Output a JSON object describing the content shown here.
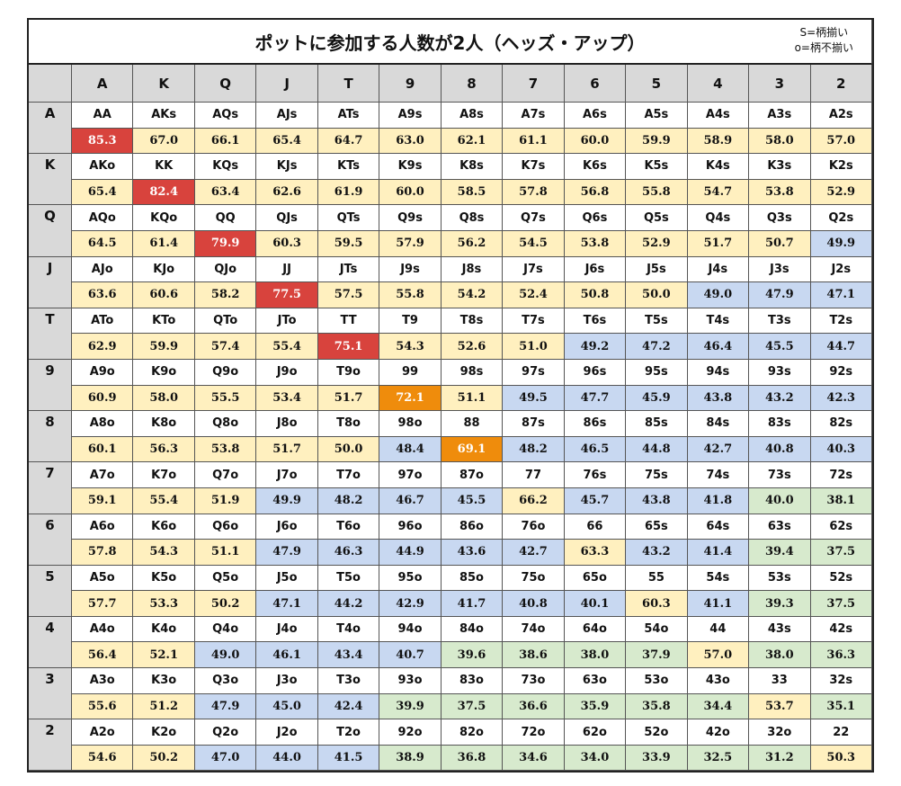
{
  "title": "ポットに参加する人数が2人（ヘッズ・アップ）",
  "note": [
    "S=柄揃い",
    "o=柄不揃い"
  ],
  "columns": [
    "A",
    "K",
    "Q",
    "J",
    "T",
    "9",
    "8",
    "7",
    "6",
    "5",
    "4",
    "3",
    "2"
  ],
  "palette": {
    "r": "#d8433d",
    "o": "#ef8c0c",
    "y": "#fff0bf",
    "b": "#c8d8f1",
    "g": "#d7eacd"
  },
  "rows": [
    {
      "label": "A",
      "hands": [
        "AA",
        "AKs",
        "AQs",
        "AJs",
        "ATs",
        "A9s",
        "A8s",
        "A7s",
        "A6s",
        "A5s",
        "A4s",
        "A3s",
        "A2s"
      ],
      "values": [
        "85.3",
        "67.0",
        "66.1",
        "65.4",
        "64.7",
        "63.0",
        "62.1",
        "61.1",
        "60.0",
        "59.9",
        "58.9",
        "58.0",
        "57.0"
      ],
      "colors": "ryyyyyyyyyyyy"
    },
    {
      "label": "K",
      "hands": [
        "AKo",
        "KK",
        "KQs",
        "KJs",
        "KTs",
        "K9s",
        "K8s",
        "K7s",
        "K6s",
        "K5s",
        "K4s",
        "K3s",
        "K2s"
      ],
      "values": [
        "65.4",
        "82.4",
        "63.4",
        "62.6",
        "61.9",
        "60.0",
        "58.5",
        "57.8",
        "56.8",
        "55.8",
        "54.7",
        "53.8",
        "52.9"
      ],
      "colors": "yryyyyyyyyyyy"
    },
    {
      "label": "Q",
      "hands": [
        "AQo",
        "KQo",
        "QQ",
        "QJs",
        "QTs",
        "Q9s",
        "Q8s",
        "Q7s",
        "Q6s",
        "Q5s",
        "Q4s",
        "Q3s",
        "Q2s"
      ],
      "values": [
        "64.5",
        "61.4",
        "79.9",
        "60.3",
        "59.5",
        "57.9",
        "56.2",
        "54.5",
        "53.8",
        "52.9",
        "51.7",
        "50.7",
        "49.9"
      ],
      "colors": "yyryyyyyyyyyb"
    },
    {
      "label": "J",
      "hands": [
        "AJo",
        "KJo",
        "QJo",
        "JJ",
        "JTs",
        "J9s",
        "J8s",
        "J7s",
        "J6s",
        "J5s",
        "J4s",
        "J3s",
        "J2s"
      ],
      "values": [
        "63.6",
        "60.6",
        "58.2",
        "77.5",
        "57.5",
        "55.8",
        "54.2",
        "52.4",
        "50.8",
        "50.0",
        "49.0",
        "47.9",
        "47.1"
      ],
      "colors": "yyyryyyyyybbb"
    },
    {
      "label": "T",
      "hands": [
        "ATo",
        "KTo",
        "QTo",
        "JTo",
        "TT",
        "T9",
        "T8s",
        "T7s",
        "T6s",
        "T5s",
        "T4s",
        "T3s",
        "T2s"
      ],
      "values": [
        "62.9",
        "59.9",
        "57.4",
        "55.4",
        "75.1",
        "54.3",
        "52.6",
        "51.0",
        "49.2",
        "47.2",
        "46.4",
        "45.5",
        "44.7"
      ],
      "colors": "yyyyryyybbbbb"
    },
    {
      "label": "9",
      "hands": [
        "A9o",
        "K9o",
        "Q9o",
        "J9o",
        "T9o",
        "99",
        "98s",
        "97s",
        "96s",
        "95s",
        "94s",
        "93s",
        "92s"
      ],
      "values": [
        "60.9",
        "58.0",
        "55.5",
        "53.4",
        "51.7",
        "72.1",
        "51.1",
        "49.5",
        "47.7",
        "45.9",
        "43.8",
        "43.2",
        "42.3"
      ],
      "colors": "yyyyyoybbbbbb"
    },
    {
      "label": "8",
      "hands": [
        "A8o",
        "K8o",
        "Q8o",
        "J8o",
        "T8o",
        "98o",
        "88",
        "87s",
        "86s",
        "85s",
        "84s",
        "83s",
        "82s"
      ],
      "values": [
        "60.1",
        "56.3",
        "53.8",
        "51.7",
        "50.0",
        "48.4",
        "69.1",
        "48.2",
        "46.5",
        "44.8",
        "42.7",
        "40.8",
        "40.3"
      ],
      "colors": "yyyyybobbbbbb"
    },
    {
      "label": "7",
      "hands": [
        "A7o",
        "K7o",
        "Q7o",
        "J7o",
        "T7o",
        "97o",
        "87o",
        "77",
        "76s",
        "75s",
        "74s",
        "73s",
        "72s"
      ],
      "values": [
        "59.1",
        "55.4",
        "51.9",
        "49.9",
        "48.2",
        "46.7",
        "45.5",
        "66.2",
        "45.7",
        "43.8",
        "41.8",
        "40.0",
        "38.1"
      ],
      "colors": "yyybbbbybbbgg"
    },
    {
      "label": "6",
      "hands": [
        "A6o",
        "K6o",
        "Q6o",
        "J6o",
        "T6o",
        "96o",
        "86o",
        "76o",
        "66",
        "65s",
        "64s",
        "63s",
        "62s"
      ],
      "values": [
        "57.8",
        "54.3",
        "51.1",
        "47.9",
        "46.3",
        "44.9",
        "43.6",
        "42.7",
        "63.3",
        "43.2",
        "41.4",
        "39.4",
        "37.5"
      ],
      "colors": "yyybbbbbybbgg"
    },
    {
      "label": "5",
      "hands": [
        "A5o",
        "K5o",
        "Q5o",
        "J5o",
        "T5o",
        "95o",
        "85o",
        "75o",
        "65o",
        "55",
        "54s",
        "53s",
        "52s"
      ],
      "values": [
        "57.7",
        "53.3",
        "50.2",
        "47.1",
        "44.2",
        "42.9",
        "41.7",
        "40.8",
        "40.1",
        "60.3",
        "41.1",
        "39.3",
        "37.5"
      ],
      "colors": "yyybbbbbbybgg"
    },
    {
      "label": "4",
      "hands": [
        "A4o",
        "K4o",
        "Q4o",
        "J4o",
        "T4o",
        "94o",
        "84o",
        "74o",
        "64o",
        "54o",
        "44",
        "43s",
        "42s"
      ],
      "values": [
        "56.4",
        "52.1",
        "49.0",
        "46.1",
        "43.4",
        "40.7",
        "39.6",
        "38.6",
        "38.0",
        "37.9",
        "57.0",
        "38.0",
        "36.3"
      ],
      "colors": "yybbbbggggygg"
    },
    {
      "label": "3",
      "hands": [
        "A3o",
        "K3o",
        "Q3o",
        "J3o",
        "T3o",
        "93o",
        "83o",
        "73o",
        "63o",
        "53o",
        "43o",
        "33",
        "32s"
      ],
      "values": [
        "55.6",
        "51.2",
        "47.9",
        "45.0",
        "42.4",
        "39.9",
        "37.5",
        "36.6",
        "35.9",
        "35.8",
        "34.4",
        "53.7",
        "35.1"
      ],
      "colors": "yybbbggggggyg"
    },
    {
      "label": "2",
      "hands": [
        "A2o",
        "K2o",
        "Q2o",
        "J2o",
        "T2o",
        "92o",
        "82o",
        "72o",
        "62o",
        "52o",
        "42o",
        "32o",
        "22"
      ],
      "values": [
        "54.6",
        "50.2",
        "47.0",
        "44.0",
        "41.5",
        "38.9",
        "36.8",
        "34.6",
        "34.0",
        "33.9",
        "32.5",
        "31.2",
        "50.3"
      ],
      "colors": "yybbbgggggggy"
    }
  ]
}
